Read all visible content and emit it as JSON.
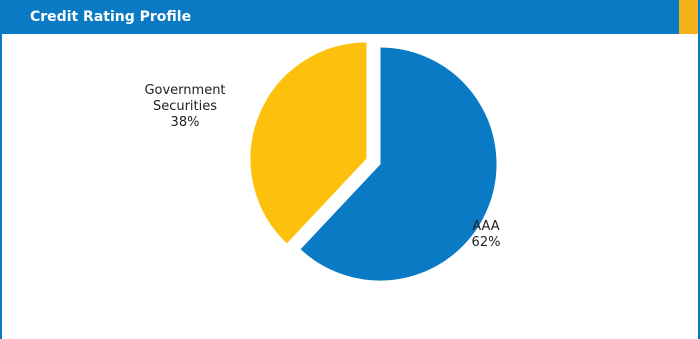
{
  "panel": {
    "title": "Credit Rating Profile",
    "header_color": "#0a7ac4",
    "accent_color": "#f5b21a"
  },
  "chart_data": {
    "type": "pie",
    "title": "",
    "slices": [
      {
        "label_lines": [
          "AAA",
          "62%"
        ],
        "value": 62,
        "color": "#0a7ac4",
        "exploded": false
      },
      {
        "label_lines": [
          "Government",
          "Securities",
          "38%"
        ],
        "value": 38,
        "color": "#fdc10d",
        "exploded": true
      }
    ]
  }
}
